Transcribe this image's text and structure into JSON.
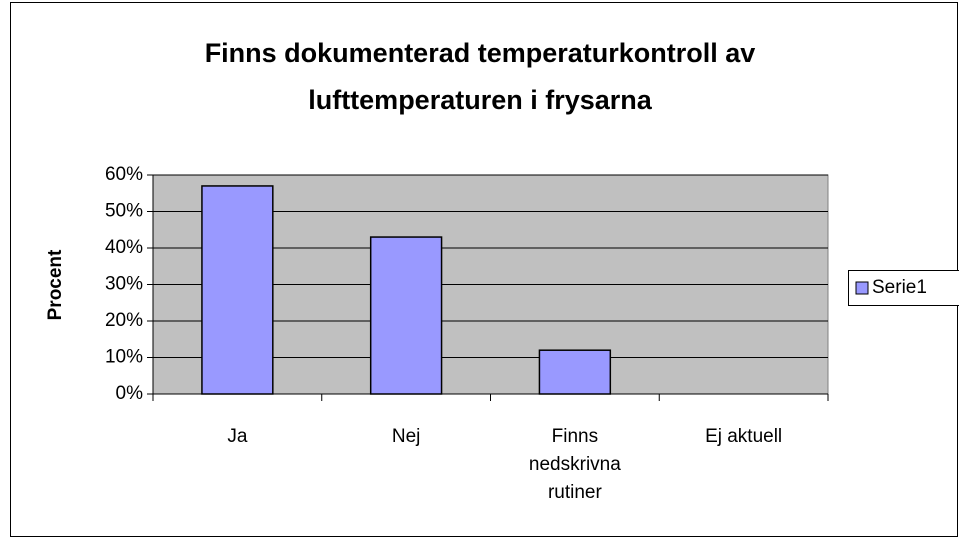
{
  "chart_data": {
    "type": "bar",
    "title": "Finns dokumenterad temperaturkontroll av lufttemperaturen i frysarna",
    "y_label": "Procent",
    "categories": [
      "Ja",
      "Nej",
      "Finns nedskrivna rutiner",
      "Ej aktuell"
    ],
    "series": [
      {
        "name": "Serie1",
        "color": "#9999ff",
        "values": [
          57,
          43,
          12,
          0
        ]
      }
    ],
    "ylim": [
      0,
      60
    ],
    "yticks": [
      {
        "value": 0,
        "label": "0%"
      },
      {
        "value": 10,
        "label": "10%"
      },
      {
        "value": 20,
        "label": "20%"
      },
      {
        "value": 30,
        "label": "30%"
      },
      {
        "value": 40,
        "label": "40%"
      },
      {
        "value": 50,
        "label": "50%"
      },
      {
        "value": 60,
        "label": "60%"
      }
    ],
    "grid": true,
    "legend": "right"
  }
}
